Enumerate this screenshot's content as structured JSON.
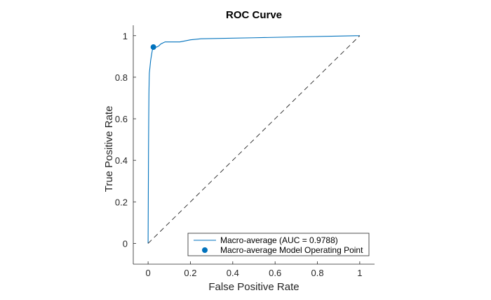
{
  "chart_data": {
    "type": "line",
    "title": "ROC Curve",
    "xlabel": "False Positive Rate",
    "ylabel": "True Positive Rate",
    "xlim": [
      -0.07,
      1.07
    ],
    "ylim": [
      -0.1,
      1.05
    ],
    "xticks": [
      0,
      0.2,
      0.4,
      0.6,
      0.8,
      1
    ],
    "xtick_labels": [
      "0",
      "0.2",
      "0.4",
      "0.6",
      "0.8",
      "1"
    ],
    "yticks": [
      0,
      0.2,
      0.4,
      0.6,
      0.8,
      1
    ],
    "ytick_labels": [
      "0",
      "0.2",
      "0.4",
      "0.6",
      "0.8",
      "1"
    ],
    "grid": false,
    "legend_position": "bottom-right",
    "series": [
      {
        "name": "Macro-average (AUC = 0.9788)",
        "kind": "line",
        "color": "#0072BD",
        "x": [
          0,
          0.002,
          0.003,
          0.004,
          0.005,
          0.006,
          0.008,
          0.01,
          0.012,
          0.015,
          0.02,
          0.025,
          0.04,
          0.05,
          0.06,
          0.08,
          0.1,
          0.15,
          0.2,
          0.25,
          0.5,
          1
        ],
        "y": [
          0,
          0.45,
          0.6,
          0.72,
          0.78,
          0.82,
          0.84,
          0.86,
          0.88,
          0.9,
          0.93,
          0.945,
          0.945,
          0.95,
          0.96,
          0.97,
          0.97,
          0.97,
          0.98,
          0.985,
          0.99,
          1
        ]
      },
      {
        "name": "Macro-average Model Operating Point",
        "kind": "marker",
        "color": "#0072BD",
        "x": [
          0.025
        ],
        "y": [
          0.945
        ]
      },
      {
        "name": "",
        "kind": "diagonal",
        "color": "#262626",
        "dash": true,
        "x": [
          0,
          1
        ],
        "y": [
          0,
          1
        ]
      }
    ]
  }
}
